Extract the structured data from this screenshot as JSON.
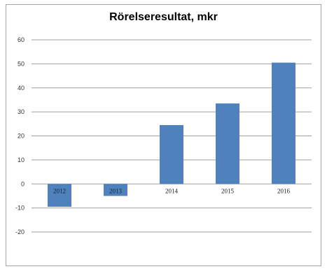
{
  "chart_data": {
    "type": "bar",
    "title": "Rörelseresultat,  mkr",
    "xlabel": "",
    "ylabel": "",
    "categories": [
      "2012",
      "2013",
      "2014",
      "2015",
      "2016"
    ],
    "values": [
      -9.5,
      -5,
      24.5,
      33.5,
      50.5
    ],
    "ylim": [
      -20,
      60
    ],
    "yticks": [
      60,
      50,
      40,
      30,
      20,
      10,
      0,
      -10,
      -20
    ],
    "grid": true,
    "legend": "none",
    "colors": {
      "bar": "#4f81bd",
      "grid": "#a0a0a0"
    }
  }
}
